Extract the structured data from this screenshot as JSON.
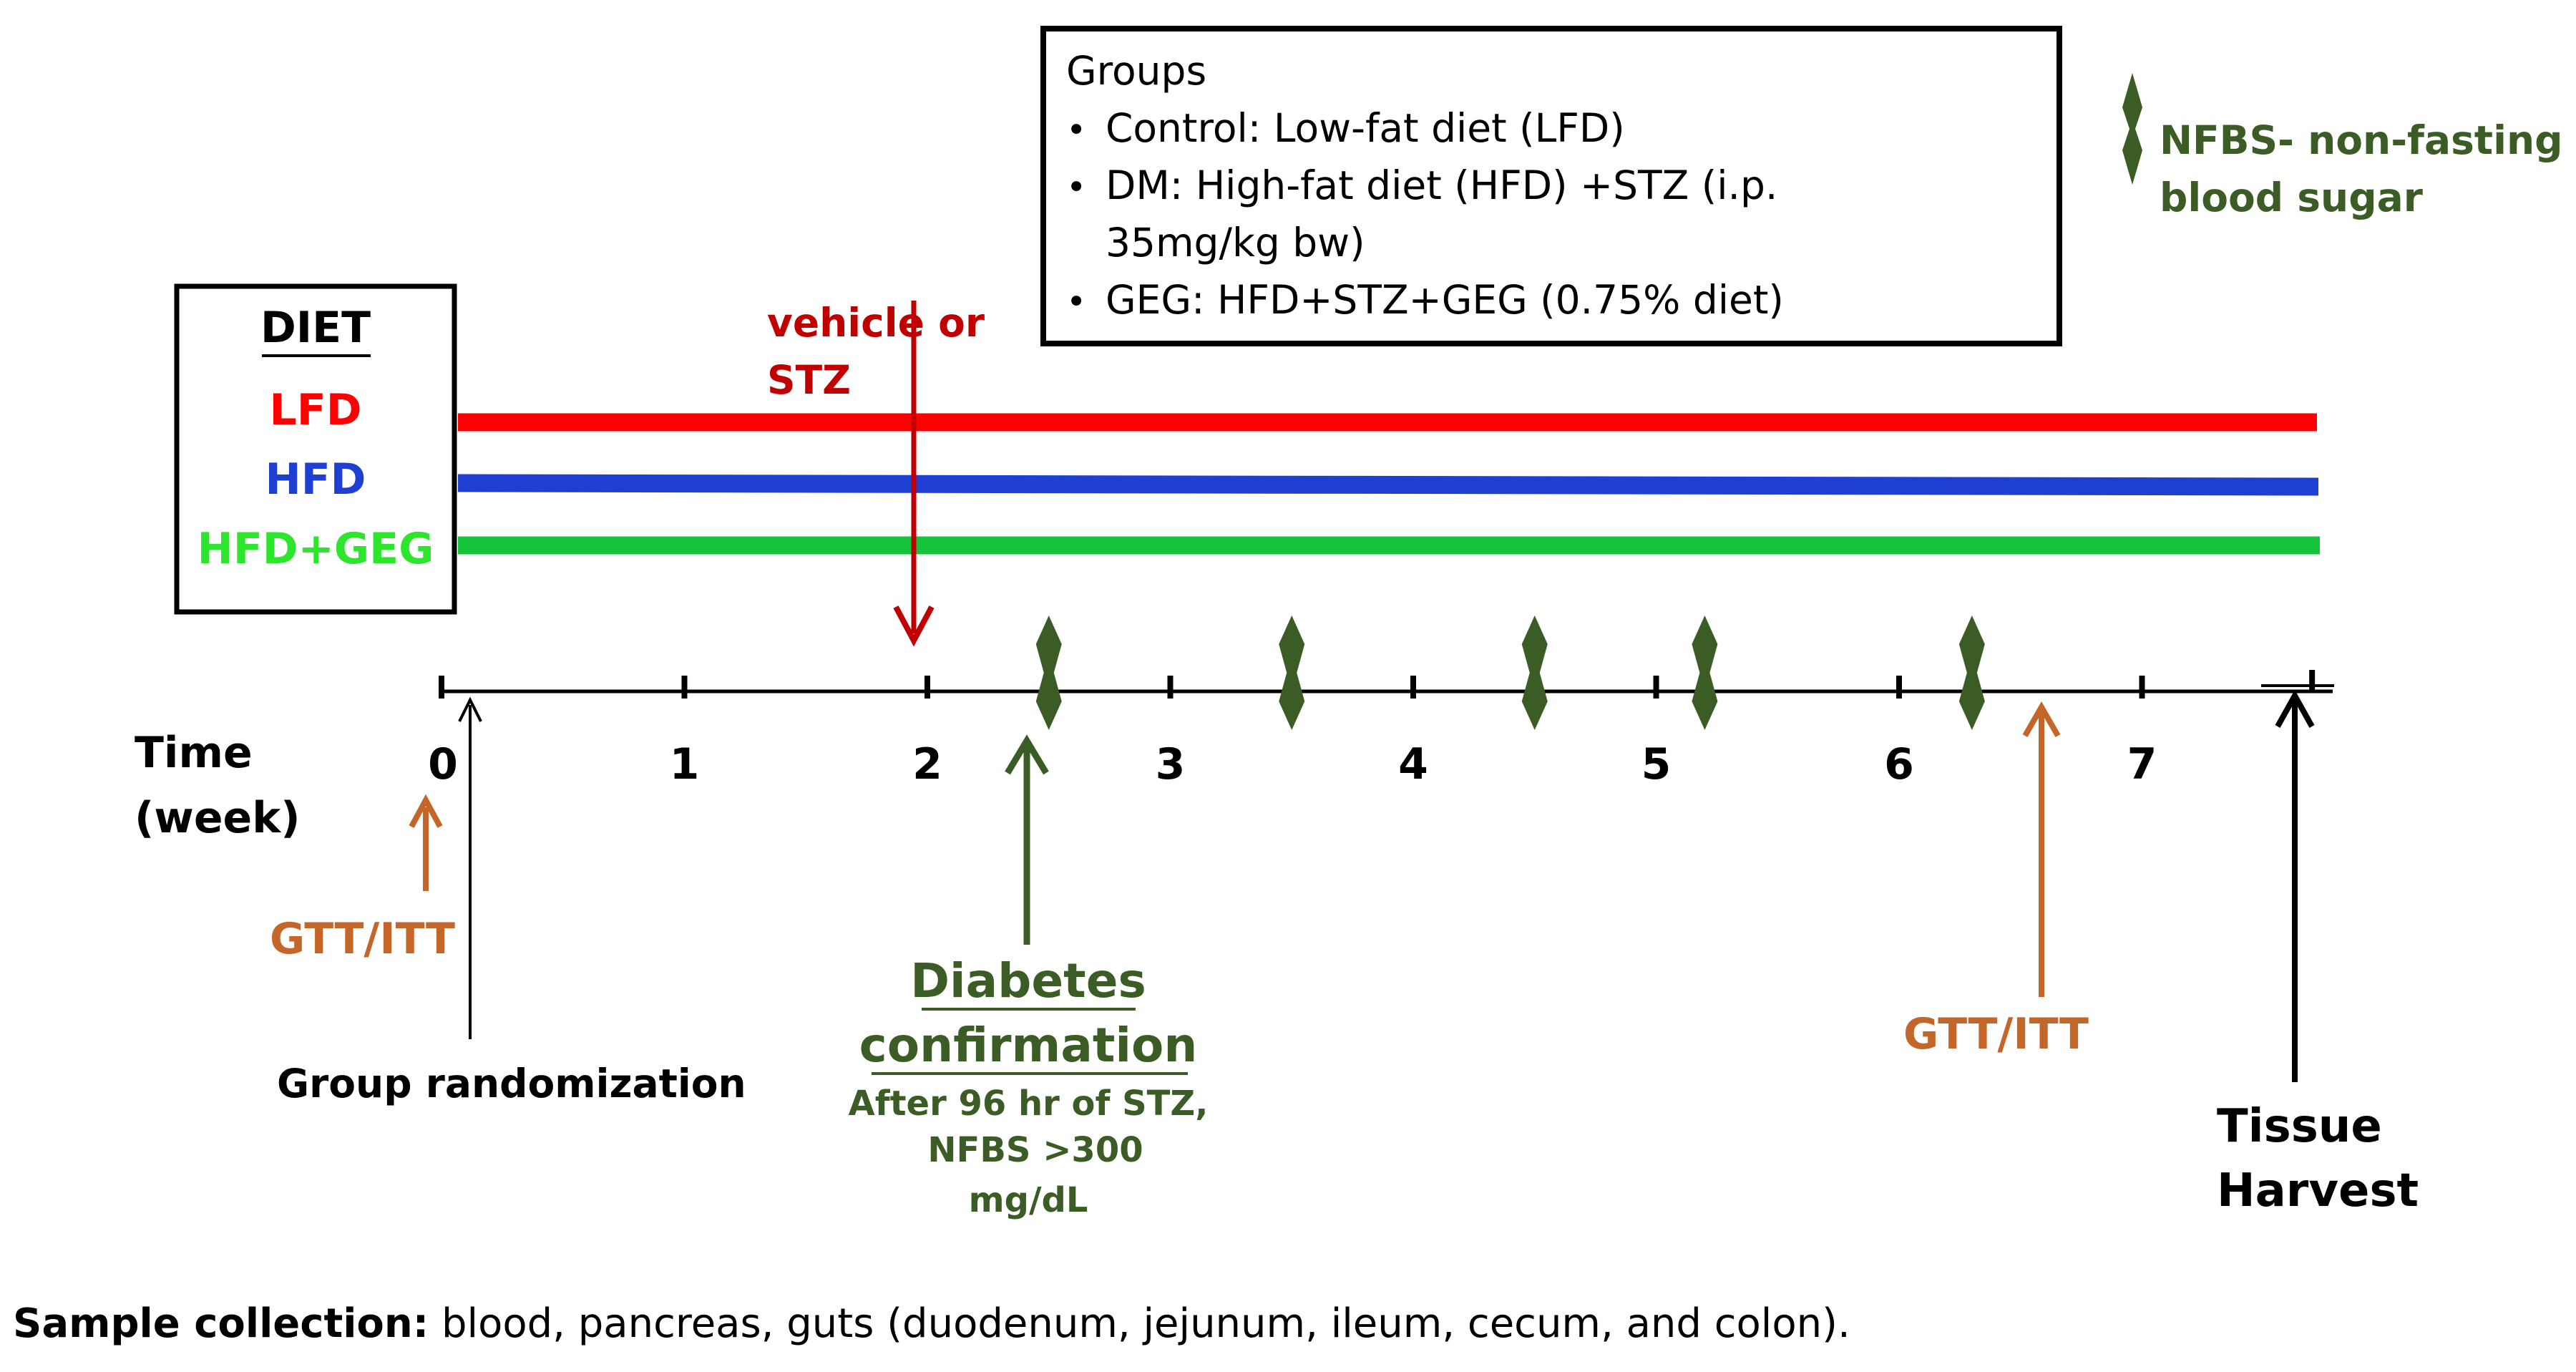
{
  "colors": {
    "lfd": "#ff0000",
    "hfd": "#1e3fd2",
    "hfd_geg": "#14c53c",
    "geg_label": "#2ee52e",
    "stz": "#c00000",
    "nfbs": "#3b5c25",
    "gtt": "#c4662a",
    "black": "#000000"
  },
  "diet_box": {
    "title": "DIET",
    "items": [
      "LFD",
      "HFD",
      "HFD+GEG"
    ]
  },
  "groups_box": {
    "title": "Groups",
    "items": [
      {
        "line1": "Control: Low-fat diet (LFD)"
      },
      {
        "line1": "DM: High-fat diet (HFD) +STZ (i.p.",
        "line2": "35mg/kg bw)"
      },
      {
        "line1": "GEG: HFD+STZ+GEG (0.75% diet)"
      }
    ]
  },
  "legend": {
    "icon": "nfbs-marker-icon",
    "line1": "NFBS- non-fasting",
    "line2": "blood sugar"
  },
  "timeline": {
    "label_line1": "Time",
    "label_line2": "(week)",
    "weeks": [
      "0",
      "1",
      "2",
      "3",
      "4",
      "5",
      "6",
      "7"
    ],
    "nfbs_week_positions": [
      2.5,
      3.5,
      4.5,
      5.2,
      6.3
    ]
  },
  "annotations": {
    "stz": {
      "line1": "vehicle or",
      "line2": "STZ",
      "week": 2
    },
    "gtt_start": {
      "text": "GTT/ITT",
      "week": 0
    },
    "gtt_end": {
      "text": "GTT/ITT",
      "week": 6.7
    },
    "randomization": {
      "text": "Group randomization",
      "week": 0
    },
    "diabetes": {
      "title1": "Diabetes",
      "title2": "confirmation",
      "note1": "After 96 hr of STZ,",
      "note2": "NFBS >300",
      "note3": "mg/dL",
      "week": 2.5
    },
    "harvest": {
      "line1": "Tissue",
      "line2": "Harvest",
      "week": 7.8
    }
  },
  "footer": {
    "bold": "Sample collection:",
    "rest": " blood, pancreas, guts (duodenum, jejunum, ileum, cecum, and colon)."
  }
}
